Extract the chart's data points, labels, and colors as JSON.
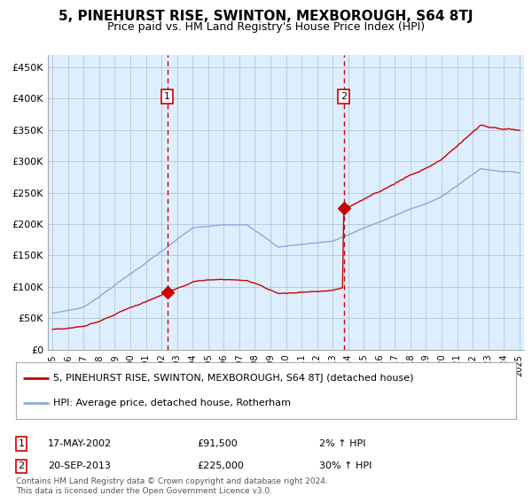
{
  "title": "5, PINEHURST RISE, SWINTON, MEXBOROUGH, S64 8TJ",
  "subtitle": "Price paid vs. HM Land Registry's House Price Index (HPI)",
  "plot_bg_color": "#ddeeff",
  "outer_bg_color": "#ffffff",
  "red_line_color": "#cc0000",
  "blue_line_color": "#88aadd",
  "grid_color": "#aabbcc",
  "ylim": [
    0,
    470000
  ],
  "yticks": [
    0,
    50000,
    100000,
    150000,
    200000,
    250000,
    300000,
    350000,
    400000,
    450000
  ],
  "ytick_labels": [
    "£0",
    "£50K",
    "£100K",
    "£150K",
    "£200K",
    "£250K",
    "£300K",
    "£350K",
    "£400K",
    "£450K"
  ],
  "x_start_year": 1995,
  "x_end_year": 2025,
  "sale1_date": 2002.37,
  "sale1_price": 91500,
  "sale2_date": 2013.72,
  "sale2_price": 225000,
  "legend_line1": "5, PINEHURST RISE, SWINTON, MEXBOROUGH, S64 8TJ (detached house)",
  "legend_line2": "HPI: Average price, detached house, Rotherham",
  "table_row1": [
    "1",
    "17-MAY-2002",
    "£91,500",
    "2% ↑ HPI"
  ],
  "table_row2": [
    "2",
    "20-SEP-2013",
    "£225,000",
    "30% ↑ HPI"
  ],
  "footer": "Contains HM Land Registry data © Crown copyright and database right 2024.\nThis data is licensed under the Open Government Licence v3.0."
}
